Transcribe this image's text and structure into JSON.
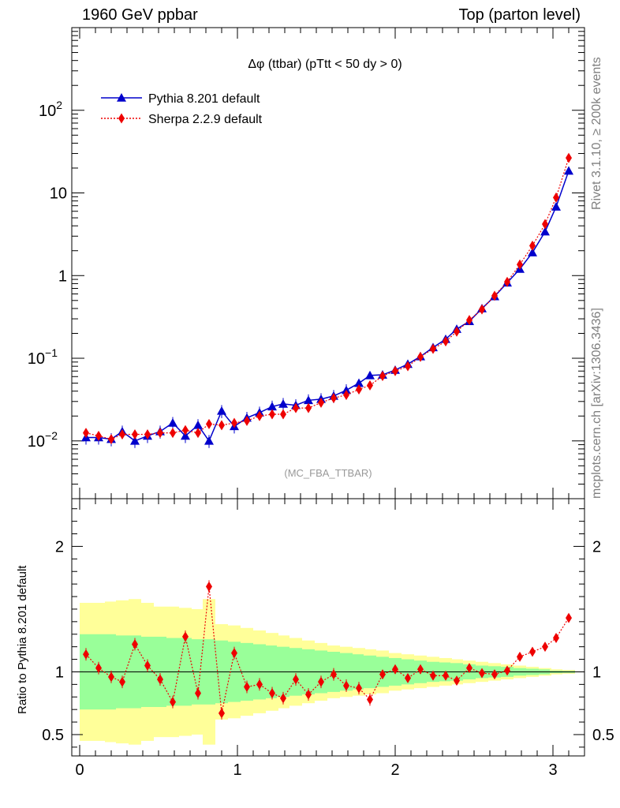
{
  "header": {
    "left": "1960 GeV ppbar",
    "right": "Top (parton level)"
  },
  "side_labels": {
    "rivet": "Rivet 3.1.10, ≥ 200k events",
    "mcplots": "mcplots.cern.ch [arXiv:1306.3436]"
  },
  "plot_title": "Δφ (ttbar) (pTtt < 50 dy > 0)",
  "analysis_tag": "(MC_FBA_TTBAR)",
  "ratio_ylabel": "Ratio to Pythia 8.201 default",
  "colors": {
    "pythia": "#0000cc",
    "sherpa": "#ee0000",
    "band_inner": "#99ff99",
    "band_outer": "#ffff99"
  },
  "chart_data": [
    {
      "type": "line",
      "panel": "main",
      "title": "Δφ (ttbar) (pTtt < 50 dy > 0)",
      "xlim": [
        -0.05,
        3.2
      ],
      "ylim": [
        0.002,
        1000
      ],
      "yscale": "log",
      "ytick_labels": [
        "10^-2",
        "10^-1",
        "1",
        "10",
        "10^2"
      ],
      "xtick_labels": [
        "0",
        "1",
        "2",
        "3"
      ],
      "legend_position": "top-left",
      "x": [
        0.04,
        0.12,
        0.2,
        0.27,
        0.35,
        0.43,
        0.51,
        0.59,
        0.67,
        0.75,
        0.82,
        0.9,
        0.98,
        1.06,
        1.14,
        1.22,
        1.29,
        1.37,
        1.45,
        1.53,
        1.61,
        1.69,
        1.77,
        1.84,
        1.92,
        2.0,
        2.08,
        2.16,
        2.24,
        2.32,
        2.39,
        2.47,
        2.55,
        2.63,
        2.71,
        2.79,
        2.87,
        2.95,
        3.02,
        3.1
      ],
      "series": [
        {
          "name": "Pythia 8.201 default",
          "marker": "triangle",
          "values": [
            0.011,
            0.011,
            0.0105,
            0.013,
            0.01,
            0.0115,
            0.013,
            0.0165,
            0.0115,
            0.0155,
            0.01,
            0.023,
            0.015,
            0.019,
            0.022,
            0.026,
            0.028,
            0.027,
            0.031,
            0.032,
            0.035,
            0.041,
            0.05,
            0.062,
            0.063,
            0.072,
            0.085,
            0.105,
            0.135,
            0.17,
            0.225,
            0.28,
            0.4,
            0.56,
            0.82,
            1.2,
            1.9,
            3.4,
            6.8,
            18.5
          ]
        },
        {
          "name": "Sherpa 2.2.9 default",
          "marker": "diamond",
          "values": [
            0.0125,
            0.0115,
            0.0105,
            0.012,
            0.012,
            0.012,
            0.0125,
            0.0125,
            0.0135,
            0.0125,
            0.016,
            0.0155,
            0.0165,
            0.0175,
            0.02,
            0.021,
            0.021,
            0.025,
            0.025,
            0.029,
            0.033,
            0.036,
            0.042,
            0.047,
            0.061,
            0.07,
            0.08,
            0.104,
            0.13,
            0.16,
            0.21,
            0.29,
            0.39,
            0.57,
            0.84,
            1.36,
            2.3,
            4.2,
            8.8,
            26.5
          ]
        }
      ]
    },
    {
      "type": "line",
      "panel": "ratio",
      "ylabel": "Ratio to Pythia 8.201 default",
      "xlim": [
        -0.05,
        3.2
      ],
      "ylim": [
        0.33,
        2.38
      ],
      "ytick_labels": [
        "0.5",
        "1",
        "2"
      ],
      "xtick_labels": [
        "0",
        "1",
        "2",
        "3"
      ],
      "x": [
        0.04,
        0.12,
        0.2,
        0.27,
        0.35,
        0.43,
        0.51,
        0.59,
        0.67,
        0.75,
        0.82,
        0.9,
        0.98,
        1.06,
        1.14,
        1.22,
        1.29,
        1.37,
        1.45,
        1.53,
        1.61,
        1.69,
        1.77,
        1.84,
        1.92,
        2.0,
        2.08,
        2.16,
        2.24,
        2.32,
        2.39,
        2.47,
        2.55,
        2.63,
        2.71,
        2.79,
        2.87,
        2.95,
        3.02,
        3.1
      ],
      "series": [
        {
          "name": "Sherpa 2.2.9 default",
          "values": [
            1.14,
            1.03,
            0.96,
            0.92,
            1.22,
            1.05,
            0.94,
            0.76,
            1.28,
            0.83,
            1.68,
            0.67,
            1.15,
            0.88,
            0.9,
            0.83,
            0.79,
            0.94,
            0.82,
            0.92,
            0.98,
            0.89,
            0.87,
            0.78,
            0.98,
            1.02,
            0.95,
            1.02,
            0.97,
            0.97,
            0.93,
            1.03,
            0.99,
            0.98,
            1.01,
            1.12,
            1.16,
            1.2,
            1.27,
            1.43
          ]
        }
      ],
      "band_inner": [
        0.3,
        0.3,
        0.3,
        0.29,
        0.29,
        0.28,
        0.28,
        0.27,
        0.27,
        0.26,
        0.26,
        0.25,
        0.24,
        0.23,
        0.22,
        0.21,
        0.2,
        0.19,
        0.18,
        0.17,
        0.16,
        0.15,
        0.14,
        0.13,
        0.12,
        0.11,
        0.1,
        0.09,
        0.08,
        0.075,
        0.07,
        0.06,
        0.05,
        0.045,
        0.04,
        0.03,
        0.025,
        0.02,
        0.01,
        0.008
      ],
      "band_outer": [
        0.55,
        0.55,
        0.56,
        0.57,
        0.58,
        0.55,
        0.52,
        0.52,
        0.51,
        0.5,
        0.58,
        0.38,
        0.37,
        0.35,
        0.33,
        0.31,
        0.29,
        0.27,
        0.25,
        0.23,
        0.21,
        0.2,
        0.19,
        0.18,
        0.17,
        0.15,
        0.14,
        0.13,
        0.12,
        0.11,
        0.1,
        0.09,
        0.08,
        0.07,
        0.06,
        0.05,
        0.04,
        0.03,
        0.02,
        0.015
      ]
    }
  ]
}
